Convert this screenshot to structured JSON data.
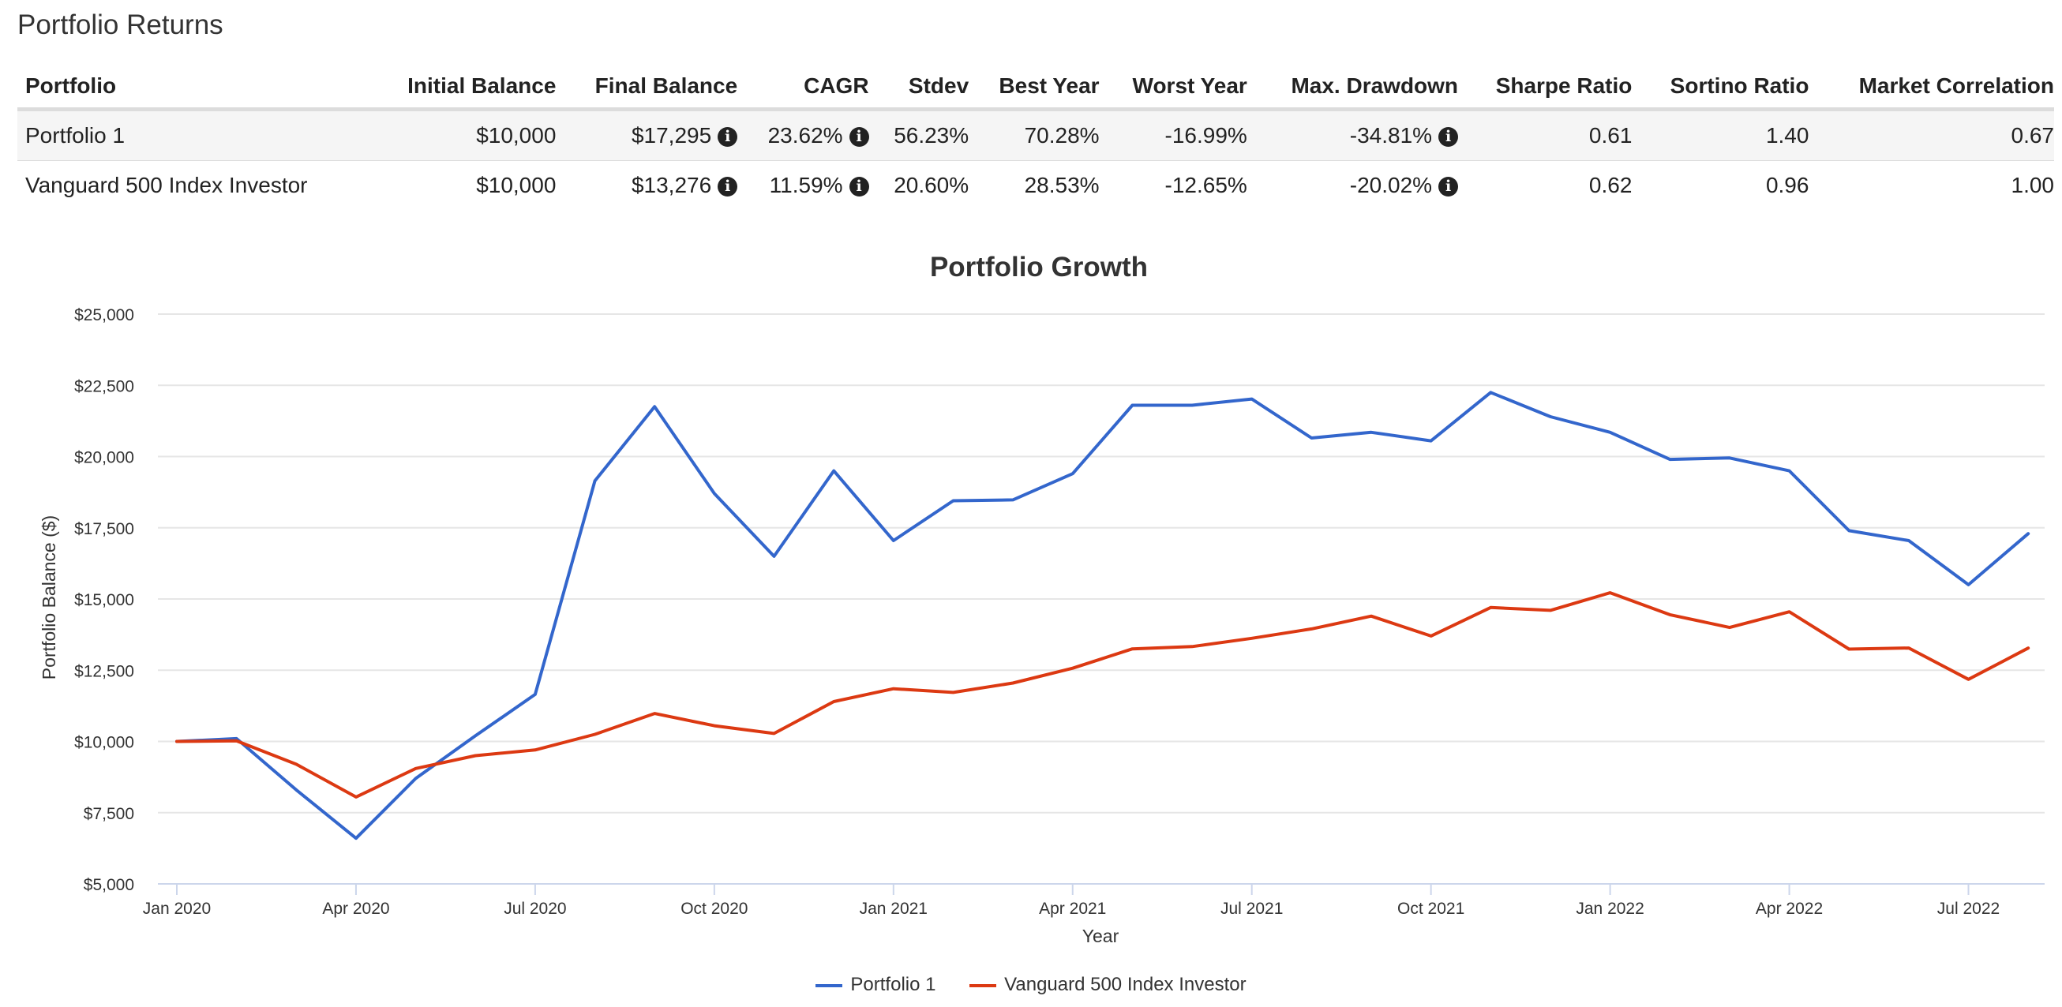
{
  "section_title": "Portfolio Returns",
  "table": {
    "columns": [
      "Portfolio",
      "Initial Balance",
      "Final Balance",
      "CAGR",
      "Stdev",
      "Best Year",
      "Worst Year",
      "Max. Drawdown",
      "Sharpe Ratio",
      "Sortino Ratio",
      "Market Correlation"
    ],
    "rows": [
      {
        "portfolio": "Portfolio 1",
        "initial": "$10,000",
        "final": "$17,295",
        "cagr": "23.62%",
        "stdev": "56.23%",
        "best": "70.28%",
        "worst": "-16.99%",
        "drawdown": "-34.81%",
        "sharpe": "0.61",
        "sortino": "1.40",
        "correlation": "0.67"
      },
      {
        "portfolio": "Vanguard 500 Index Investor",
        "initial": "$10,000",
        "final": "$13,276",
        "cagr": "11.59%",
        "stdev": "20.60%",
        "best": "28.53%",
        "worst": "-12.65%",
        "drawdown": "-20.02%",
        "sharpe": "0.62",
        "sortino": "0.96",
        "correlation": "1.00"
      }
    ],
    "info_icon": "info-circle-icon"
  },
  "chart_data": {
    "type": "line",
    "title": "Portfolio Growth",
    "xlabel": "Year",
    "ylabel": "Portfolio Balance ($)",
    "ylim": [
      5000,
      25000
    ],
    "y_ticks": [
      "$5,000",
      "$7,500",
      "$10,000",
      "$12,500",
      "$15,000",
      "$17,500",
      "$20,000",
      "$22,500",
      "$25,000"
    ],
    "x_ticks": [
      "Jan 2020",
      "Apr 2020",
      "Jul 2020",
      "Oct 2020",
      "Jan 2021",
      "Apr 2021",
      "Jul 2021",
      "Oct 2021",
      "Jan 2022",
      "Apr 2022",
      "Jul 2022"
    ],
    "x": [
      "2020-01",
      "2020-02",
      "2020-03",
      "2020-04",
      "2020-05",
      "2020-06",
      "2020-07",
      "2020-08",
      "2020-09",
      "2020-10",
      "2020-11",
      "2020-12",
      "2021-01",
      "2021-02",
      "2021-03",
      "2021-04",
      "2021-05",
      "2021-06",
      "2021-07",
      "2021-08",
      "2021-09",
      "2021-10",
      "2021-11",
      "2021-12",
      "2022-01",
      "2022-02",
      "2022-03",
      "2022-04",
      "2022-05",
      "2022-06",
      "2022-07",
      "2022-08"
    ],
    "grid": true,
    "legend_position": "bottom",
    "series": [
      {
        "name": "Portfolio 1",
        "color": "#3366cc",
        "values": [
          10000,
          10100,
          8300,
          6600,
          8700,
          10200,
          11650,
          19150,
          21750,
          18700,
          16500,
          19500,
          17050,
          18450,
          18480,
          19400,
          21800,
          21800,
          22020,
          20650,
          20850,
          20550,
          22250,
          21400,
          20850,
          19900,
          19950,
          19500,
          17400,
          17050,
          15500,
          17295
        ]
      },
      {
        "name": "Vanguard 500 Index Investor",
        "color": "#dc3912",
        "values": [
          10000,
          10020,
          9200,
          8050,
          9050,
          9500,
          9700,
          10250,
          10980,
          10550,
          10280,
          11400,
          11850,
          11720,
          12050,
          12570,
          13250,
          13330,
          13620,
          13950,
          14400,
          13700,
          14700,
          14600,
          15220,
          14450,
          14000,
          14550,
          13240,
          13280,
          12180,
          13276
        ]
      }
    ]
  }
}
